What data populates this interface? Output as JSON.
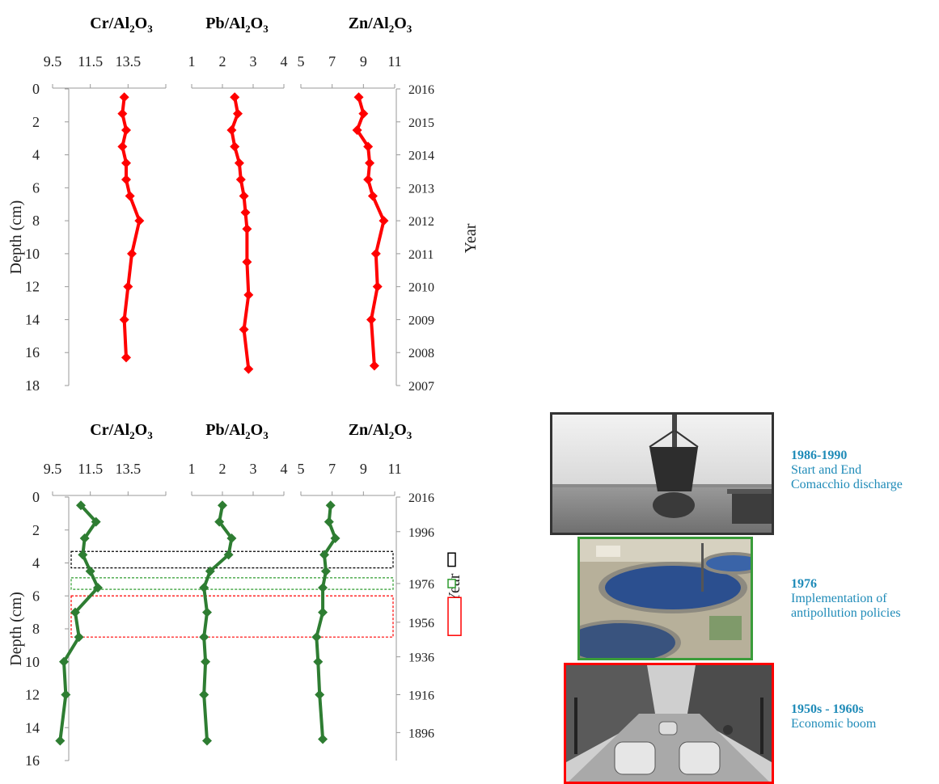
{
  "chart_data": [
    {
      "type": "line",
      "panel": "top",
      "ylabel": "Depth (cm)",
      "y2label": "Year",
      "ylim": [
        0,
        18
      ],
      "y_ticks": [
        0,
        2,
        4,
        6,
        8,
        10,
        12,
        14,
        16,
        18
      ],
      "year_ticks": [
        {
          "depth": 0,
          "year": "2016"
        },
        {
          "depth": 2,
          "year": "2015"
        },
        {
          "depth": 4,
          "year": "2014"
        },
        {
          "depth": 6,
          "year": "2013"
        },
        {
          "depth": 8,
          "year": "2012"
        },
        {
          "depth": 10,
          "year": "2011"
        },
        {
          "depth": 12,
          "year": "2010"
        },
        {
          "depth": 14,
          "year": "2009"
        },
        {
          "depth": 16,
          "year": "2008"
        },
        {
          "depth": 18,
          "year": "2007"
        }
      ],
      "color": "#ff0000",
      "series": [
        {
          "name": "Cr/Al2O3",
          "title_main": "Cr/Al",
          "title_sub1": "2",
          "title_mid": "O",
          "title_sub2": "3",
          "xlim": [
            9.5,
            15.5
          ],
          "x_ticks": [
            {
              "v": 9.5,
              "label": "9.5"
            },
            {
              "v": 11.5,
              "label": "11.5"
            },
            {
              "v": 13.5,
              "label": "13.5"
            }
          ],
          "depth": [
            0.5,
            1.5,
            2.5,
            3.5,
            4.5,
            5.5,
            6.5,
            8,
            10,
            12,
            14,
            16.3
          ],
          "values": [
            13.3,
            13.2,
            13.4,
            13.2,
            13.4,
            13.4,
            13.6,
            14.1,
            13.7,
            13.5,
            13.3,
            13.4
          ]
        },
        {
          "name": "Pb/Al2O3",
          "title_main": "Pb/Al",
          "title_sub1": "2",
          "title_mid": "O",
          "title_sub2": "3",
          "xlim": [
            1,
            4
          ],
          "x_ticks": [
            {
              "v": 1,
              "label": "1"
            },
            {
              "v": 2,
              "label": "2"
            },
            {
              "v": 3,
              "label": "3"
            },
            {
              "v": 4,
              "label": "4"
            }
          ],
          "depth": [
            0.5,
            1.5,
            2.5,
            3.5,
            4.5,
            5.5,
            6.5,
            7.5,
            8.5,
            10.5,
            12.5,
            14.6,
            17
          ],
          "values": [
            2.4,
            2.5,
            2.3,
            2.4,
            2.55,
            2.6,
            2.7,
            2.75,
            2.8,
            2.8,
            2.85,
            2.7,
            2.85
          ]
        },
        {
          "name": "Zn/Al2O3",
          "title_main": "Zn/Al",
          "title_sub1": "2",
          "title_mid": "O",
          "title_sub2": "3",
          "xlim": [
            5,
            11
          ],
          "x_ticks": [
            {
              "v": 5,
              "label": "5"
            },
            {
              "v": 7,
              "label": "7"
            },
            {
              "v": 9,
              "label": "9"
            },
            {
              "v": 11,
              "label": "11"
            }
          ],
          "depth": [
            0.5,
            1.5,
            2.5,
            3.5,
            4.5,
            5.5,
            6.5,
            8,
            10,
            12,
            14,
            16.8
          ],
          "values": [
            8.7,
            9.0,
            8.6,
            9.3,
            9.4,
            9.3,
            9.6,
            10.3,
            9.8,
            9.9,
            9.5,
            9.7
          ]
        }
      ]
    },
    {
      "type": "line",
      "panel": "bottom",
      "ylabel": "Depth (cm)",
      "y2label": "Year",
      "ylim": [
        0,
        16
      ],
      "y_ticks": [
        0,
        2,
        4,
        6,
        8,
        10,
        12,
        14,
        16
      ],
      "year_ticks": [
        {
          "depth": 0,
          "year": "2016"
        },
        {
          "depth": 2.1,
          "year": "1996"
        },
        {
          "depth": 5.25,
          "year": "1976"
        },
        {
          "depth": 7.6,
          "year": "1956"
        },
        {
          "depth": 9.7,
          "year": "1936"
        },
        {
          "depth": 12.0,
          "year": "1916"
        },
        {
          "depth": 14.3,
          "year": "1896"
        }
      ],
      "color": "#2e7d32",
      "series": [
        {
          "name": "Cr/Al2O3",
          "title_main": "Cr/Al",
          "title_sub1": "2",
          "title_mid": "O",
          "title_sub2": "3",
          "xlim": [
            9.5,
            15.5
          ],
          "x_ticks": [
            {
              "v": 9.5,
              "label": "9.5"
            },
            {
              "v": 11.5,
              "label": "11.5"
            },
            {
              "v": 13.5,
              "label": "13.5"
            }
          ],
          "depth": [
            0.5,
            1.5,
            2.5,
            3.5,
            4.5,
            5.5,
            7,
            8.5,
            10,
            12,
            14.8
          ],
          "values": [
            11.0,
            11.8,
            11.2,
            11.1,
            11.5,
            11.9,
            10.7,
            10.9,
            10.1,
            10.2,
            9.9
          ]
        },
        {
          "name": "Pb/Al2O3",
          "title_main": "Pb/Al",
          "title_sub1": "2",
          "title_mid": "O",
          "title_sub2": "3",
          "xlim": [
            1,
            4
          ],
          "x_ticks": [
            {
              "v": 1,
              "label": "1"
            },
            {
              "v": 2,
              "label": "2"
            },
            {
              "v": 3,
              "label": "3"
            },
            {
              "v": 4,
              "label": "4"
            }
          ],
          "depth": [
            0.5,
            1.5,
            2.5,
            3.5,
            4.5,
            5.5,
            7,
            8.5,
            10,
            12,
            14.8
          ],
          "values": [
            2.0,
            1.9,
            2.3,
            2.2,
            1.6,
            1.4,
            1.5,
            1.4,
            1.45,
            1.4,
            1.5
          ]
        },
        {
          "name": "Zn/Al2O3",
          "title_main": "Zn/Al",
          "title_sub1": "2",
          "title_mid": "O",
          "title_sub2": "3",
          "xlim": [
            5,
            11
          ],
          "x_ticks": [
            {
              "v": 5,
              "label": "5"
            },
            {
              "v": 7,
              "label": "7"
            },
            {
              "v": 9,
              "label": "9"
            },
            {
              "v": 11,
              "label": "11"
            }
          ],
          "depth": [
            0.5,
            1.5,
            2.5,
            3.5,
            4.5,
            5.5,
            7,
            8.5,
            10,
            12,
            14.7
          ],
          "values": [
            6.9,
            6.8,
            7.2,
            6.5,
            6.6,
            6.4,
            6.4,
            6.0,
            6.1,
            6.2,
            6.4
          ]
        }
      ],
      "highlight_bands": [
        {
          "depth_from": 3.3,
          "depth_to": 4.3,
          "color": "#000000"
        },
        {
          "depth_from": 4.9,
          "depth_to": 5.6,
          "color": "#2e9c2e"
        },
        {
          "depth_from": 6.0,
          "depth_to": 8.5,
          "color": "#ff0000"
        }
      ]
    }
  ],
  "photos": [
    {
      "year": "1986-1990",
      "line1": "Start and End",
      "line2": "Comacchio discharge",
      "border": "#333333"
    },
    {
      "year": "1976",
      "line1": "Implementation of",
      "line2": "antipollution policies",
      "border": "#3a9c3a"
    },
    {
      "year": "1950s - 1960s",
      "line1": "Economic boom",
      "line2": "",
      "border": "#ff0000"
    }
  ]
}
